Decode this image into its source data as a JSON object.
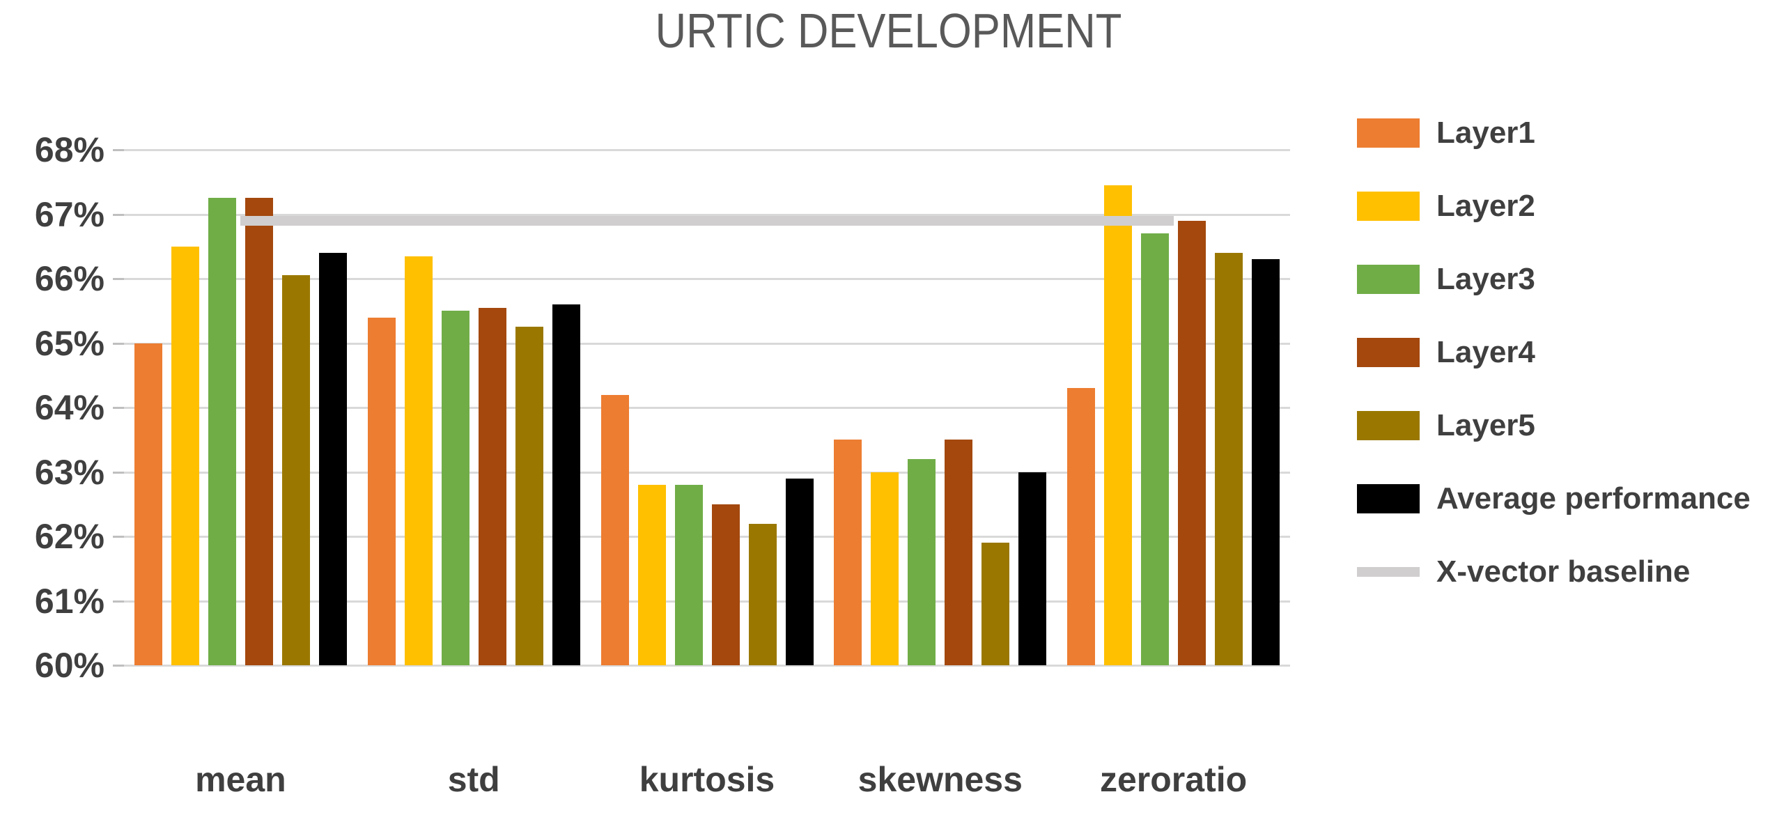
{
  "title": "URTIC DEVELOPMENT",
  "chart_data": {
    "type": "bar",
    "title": "URTIC DEVELOPMENT",
    "categories": [
      "mean",
      "std",
      "kurtosis",
      "skewness",
      "zeroratio"
    ],
    "series": [
      {
        "name": "Layer1",
        "color": "#ED7D31",
        "values": [
          65.0,
          65.4,
          64.2,
          63.5,
          64.3
        ]
      },
      {
        "name": "Layer2",
        "color": "#FFC000",
        "values": [
          66.5,
          66.35,
          62.8,
          63.0,
          67.45
        ]
      },
      {
        "name": "Layer3",
        "color": "#70AD47",
        "values": [
          67.25,
          65.5,
          62.8,
          63.2,
          66.7
        ]
      },
      {
        "name": "Layer4",
        "color": "#A4480E",
        "values": [
          67.25,
          65.55,
          62.5,
          63.5,
          66.9
        ]
      },
      {
        "name": "Layer5",
        "color": "#9A7800",
        "values": [
          66.05,
          65.25,
          62.2,
          61.9,
          66.4
        ]
      },
      {
        "name": "Average performance",
        "color": "#000000",
        "values": [
          66.4,
          65.6,
          62.9,
          63.0,
          66.3
        ]
      }
    ],
    "baseline_series": {
      "name": "X-vector baseline",
      "value": 66.9,
      "color": "#D0CECE",
      "span": "first-to-last-category-center",
      "drawn_on_top_of_bars": true
    },
    "y_axis": {
      "min": 60,
      "max": 68,
      "step": 1,
      "tick_labels": [
        "68%",
        "67%",
        "66%",
        "65%",
        "64%",
        "63%",
        "62%",
        "61%",
        "60%"
      ]
    },
    "legend": {
      "position": "right",
      "entries": [
        "Layer1",
        "Layer2",
        "Layer3",
        "Layer4",
        "Layer5",
        "Average performance",
        "X-vector baseline"
      ]
    },
    "grid": true
  },
  "style_colors": {
    "gridline": "#D9D9D9",
    "tick_stub": "#BFBFBF",
    "title_text": "#595959",
    "axis_text": "#3F3F3F",
    "background": "#FFFFFF"
  }
}
